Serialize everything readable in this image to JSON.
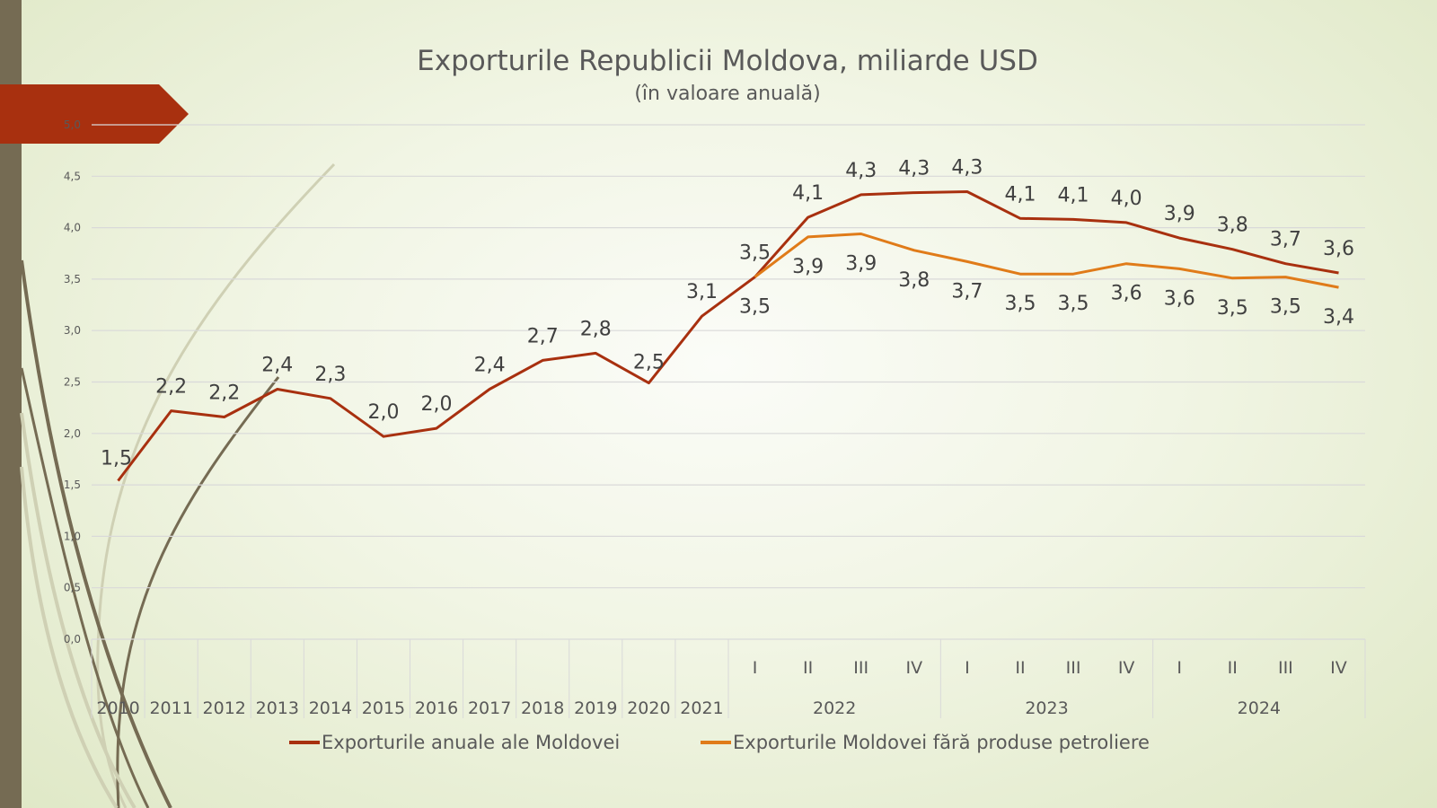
{
  "chart_data": {
    "type": "line",
    "title": "Exporturile Republicii Moldova, miliarde USD",
    "subtitle": "(în valoare anuală)",
    "xlabel": "",
    "ylabel": "",
    "ylim": [
      0,
      5
    ],
    "yticks": [
      "0,0",
      "0,5",
      "1,0",
      "1,5",
      "2,0",
      "2,5",
      "3,0",
      "3,5",
      "4,0",
      "4,5",
      "5,0"
    ],
    "grid": true,
    "legend_position": "bottom",
    "categories": [
      "2010",
      "2011",
      "2012",
      "2013",
      "2014",
      "2015",
      "2016",
      "2017",
      "2018",
      "2019",
      "2020",
      "2021",
      "2022 I",
      "2022 II",
      "2022 III",
      "2022 IV",
      "2023 I",
      "2023 II",
      "2023 III",
      "2023 IV",
      "2024 I",
      "2024 II",
      "2024 III",
      "2024 IV"
    ],
    "x_tick_labels": [
      "2010",
      "2011",
      "2012",
      "2013",
      "2014",
      "2015",
      "2016",
      "2017",
      "2018",
      "2019",
      "2020",
      "2021",
      "I",
      "II",
      "III",
      "IV",
      "I",
      "II",
      "III",
      "IV",
      "I",
      "II",
      "III",
      "IV"
    ],
    "x_group_labels": [
      {
        "label": "2022",
        "from": 12,
        "to": 15
      },
      {
        "label": "2023",
        "from": 16,
        "to": 19
      },
      {
        "label": "2024",
        "from": 20,
        "to": 23
      }
    ],
    "series": [
      {
        "name": "Exporturile anuale ale Moldovei",
        "color": "#a8300f",
        "values": [
          1.54,
          2.22,
          2.16,
          2.43,
          2.34,
          1.97,
          2.05,
          2.43,
          2.71,
          2.78,
          2.49,
          3.14,
          3.52,
          4.1,
          4.32,
          4.34,
          4.35,
          4.09,
          4.08,
          4.05,
          3.9,
          3.79,
          3.65,
          3.56
        ],
        "labels": [
          "1,5",
          "2,2",
          "2,2",
          "2,4",
          "2,3",
          "2,0",
          "2,0",
          "2,4",
          "2,7",
          "2,8",
          "2,5",
          "3,1",
          "3,5",
          "4,1",
          "4,3",
          "4,3",
          "4,3",
          "4,1",
          "4,1",
          "4,0",
          "3,9",
          "3,8",
          "3,7",
          "3,6"
        ]
      },
      {
        "name": "Exporturile Moldovei fără produse petroliere",
        "color": "#e07b19",
        "start_index": 12,
        "values": [
          3.52,
          3.91,
          3.94,
          3.78,
          3.67,
          3.55,
          3.55,
          3.65,
          3.6,
          3.51,
          3.52,
          3.42
        ],
        "labels": [
          "3,5",
          "3,9",
          "3,9",
          "3,8",
          "3,7",
          "3,5",
          "3,5",
          "3,6",
          "3,6",
          "3,5",
          "3,5",
          "3,4"
        ]
      }
    ]
  }
}
